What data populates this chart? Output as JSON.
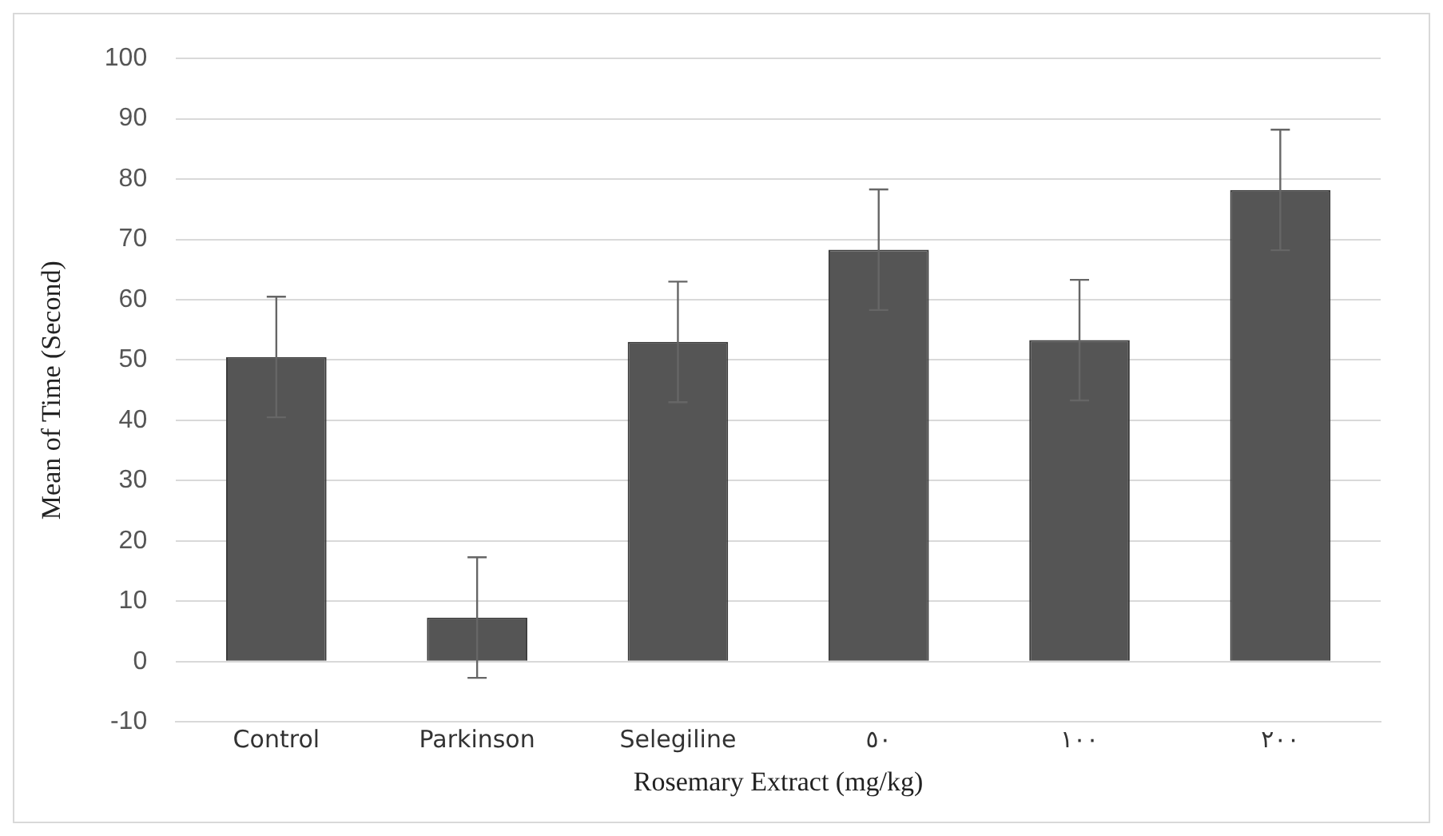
{
  "chart_data": {
    "type": "bar",
    "xlabel": "Rosemary Extract (mg/kg)",
    "ylabel": "Mean of Time (Second)",
    "categories": [
      "Control",
      "Parkinson",
      "Selegiline",
      "٥٠",
      "١٠٠",
      "٢٠٠"
    ],
    "values": [
      50.5,
      7.3,
      53,
      68.3,
      53.3,
      78.2
    ],
    "errors": [
      10,
      10,
      10,
      10,
      10,
      10
    ],
    "color": "#555555",
    "ylim": [
      -10,
      100
    ],
    "yticks": [
      -10,
      0,
      10,
      20,
      30,
      40,
      50,
      60,
      70,
      80,
      90,
      100
    ],
    "grid": "y",
    "legend": false
  }
}
